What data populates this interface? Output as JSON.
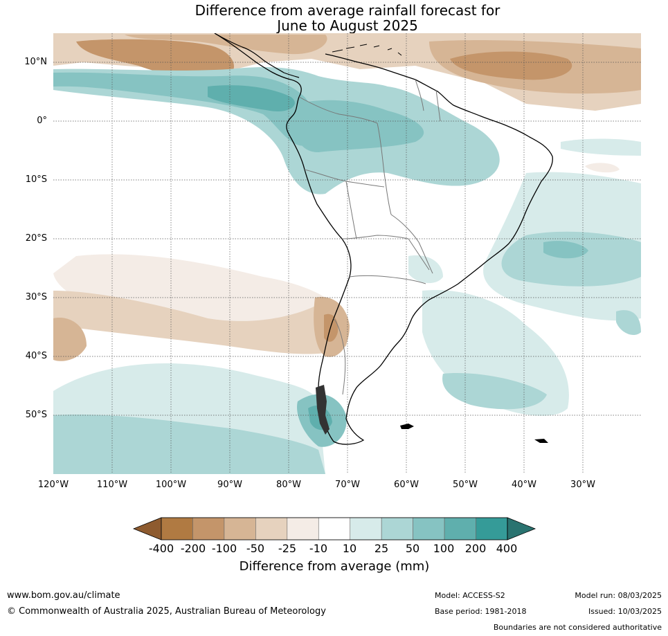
{
  "title": {
    "line1": "Difference from average rainfall forecast for",
    "line2": "June to August 2025"
  },
  "map": {
    "lat_labels": [
      "10°N",
      "0°",
      "10°S",
      "20°S",
      "30°S",
      "40°S",
      "50°S"
    ],
    "lon_labels": [
      "120°W",
      "110°W",
      "100°W",
      "90°W",
      "80°W",
      "70°W",
      "60°W",
      "50°W",
      "40°W",
      "30°W"
    ]
  },
  "colorbar": {
    "title": "Difference from average (mm)",
    "labels": [
      "-400",
      "-200",
      "-100",
      "-50",
      "-25",
      "-10",
      "10",
      "25",
      "50",
      "100",
      "200",
      "400"
    ],
    "colors": [
      "#8e5b2f",
      "#b07a42",
      "#c4956a",
      "#d6b595",
      "#e6d2be",
      "#f4ece6",
      "#ffffff",
      "#d7ebea",
      "#acd6d5",
      "#86c3c2",
      "#5fafad",
      "#359b98",
      "#2a7370"
    ]
  },
  "footer": {
    "url": "www.bom.gov.au/climate",
    "copyright": "© Commonwealth of Australia 2025, Australian Bureau of Meteorology",
    "model": "Model: ACCESS-S2",
    "base_period": "Base period: 1981-2018",
    "model_run": "Model run: 08/03/2025",
    "issued": "Issued: 10/03/2025",
    "disclaimer": "Boundaries are not considered authoritative"
  }
}
